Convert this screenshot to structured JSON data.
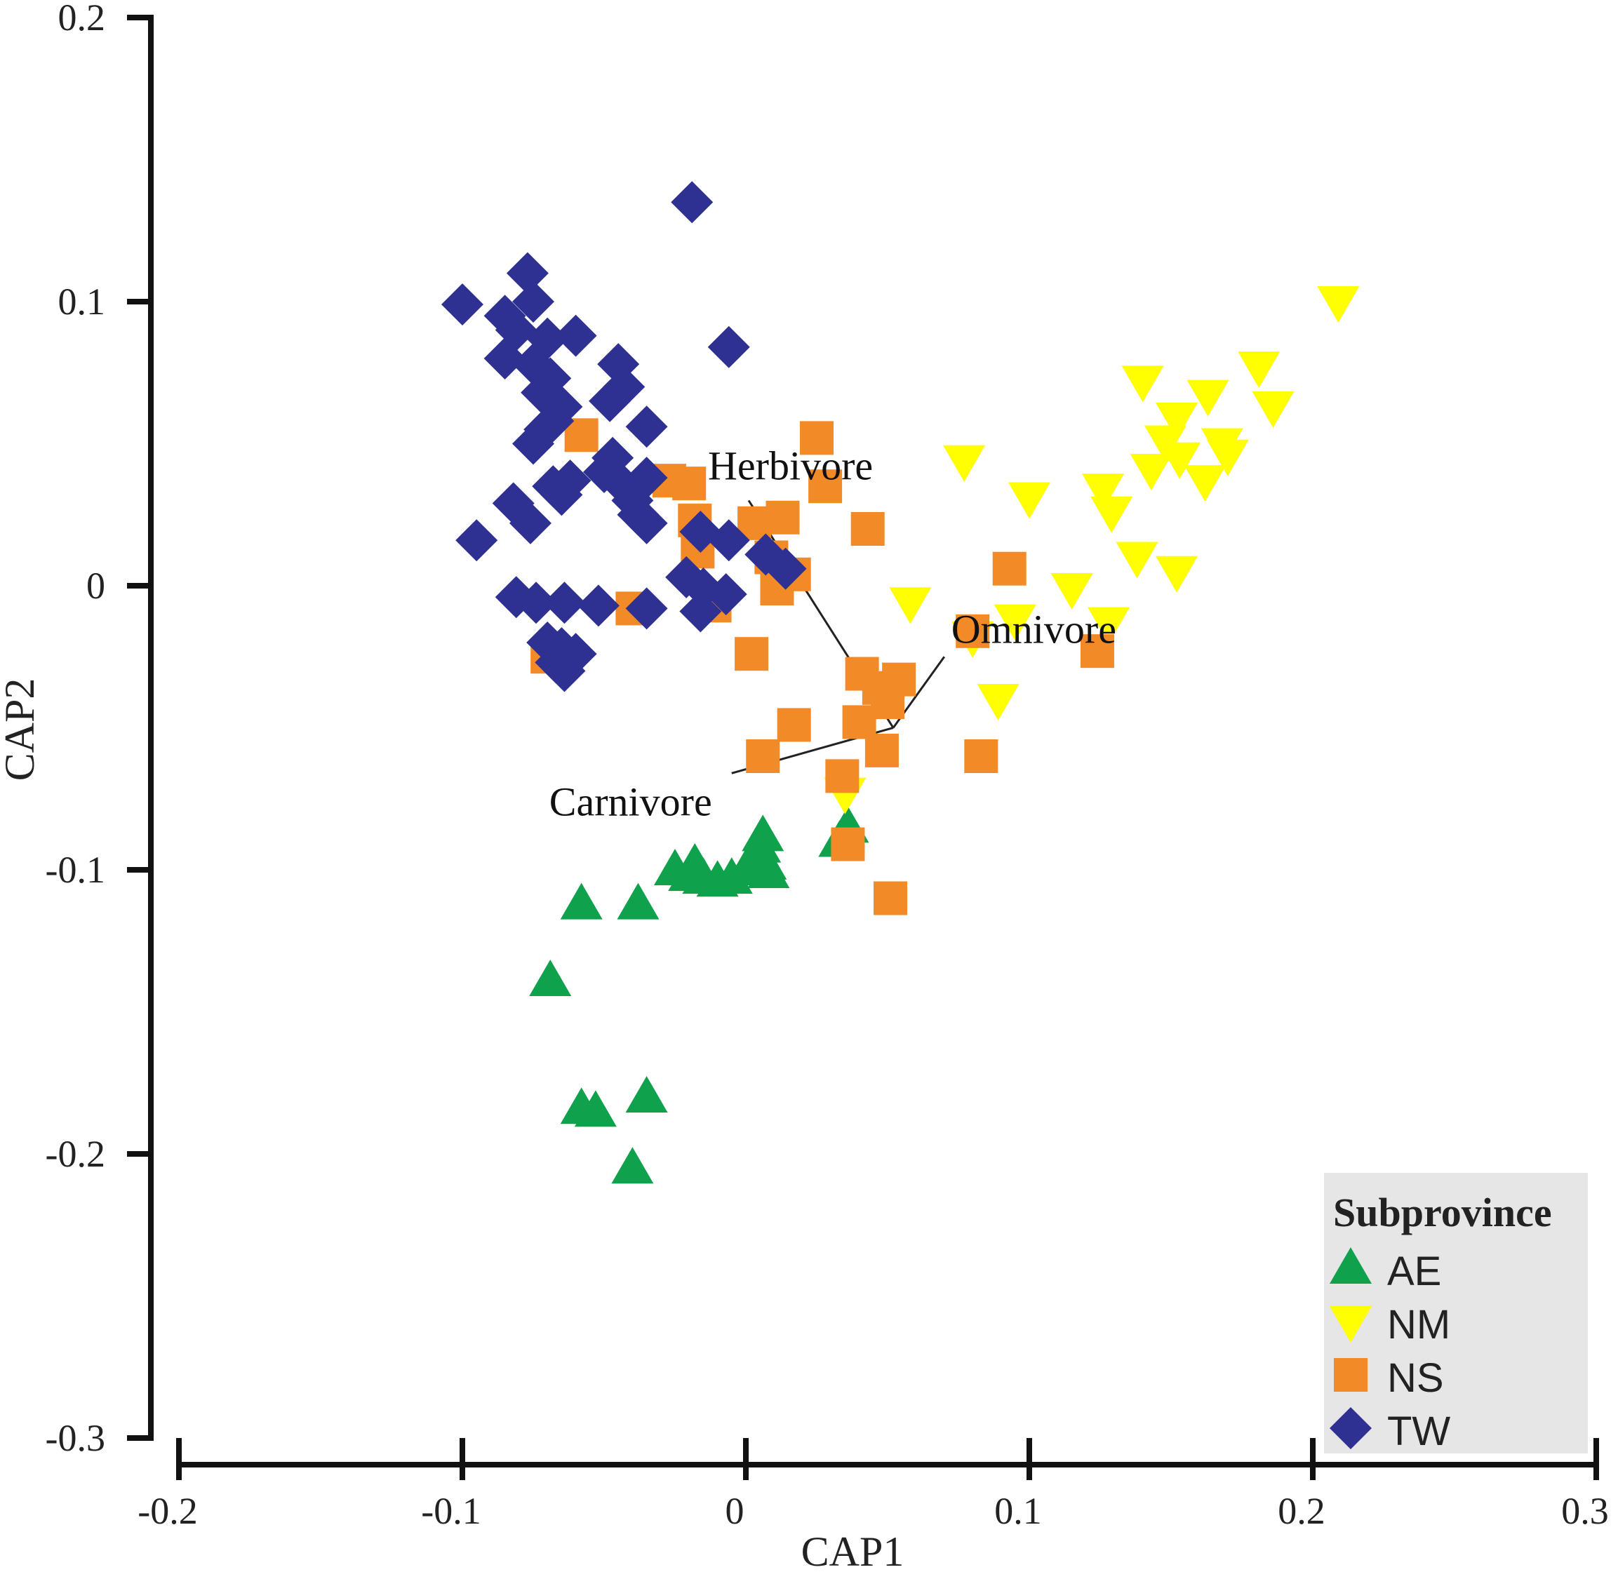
{
  "chart_data": {
    "type": "scatter",
    "title": "",
    "xlabel": "CAP1",
    "ylabel": "CAP2",
    "xlim": [
      -0.2,
      0.3
    ],
    "ylim": [
      -0.3,
      0.2
    ],
    "xticks": [
      -0.2,
      -0.1,
      0,
      0.1,
      0.2,
      0.3
    ],
    "xtick_labels": [
      "-0.2",
      "-0.1",
      "0",
      "0.1",
      "0.2",
      "0.3"
    ],
    "yticks": [
      -0.3,
      -0.2,
      -0.1,
      0,
      0.1,
      0.2
    ],
    "ytick_labels": [
      "-0.3",
      "-0.2",
      "-0.1",
      "0",
      "0.1",
      "0.2"
    ],
    "grid": false,
    "legend": {
      "title": "Subprovince",
      "position": "bottom-right"
    },
    "series": [
      {
        "name": "AE",
        "marker": "triangle-up",
        "color": "#0fa14b",
        "points": [
          [
            -0.069,
            -0.139
          ],
          [
            -0.058,
            -0.112
          ],
          [
            -0.038,
            -0.112
          ],
          [
            -0.058,
            -0.184
          ],
          [
            -0.053,
            -0.185
          ],
          [
            -0.035,
            -0.18
          ],
          [
            -0.04,
            -0.205
          ],
          [
            -0.025,
            -0.1
          ],
          [
            -0.02,
            -0.102
          ],
          [
            -0.018,
            -0.098
          ],
          [
            -0.015,
            -0.103
          ],
          [
            -0.01,
            -0.104
          ],
          [
            -0.005,
            -0.103
          ],
          [
            0,
            -0.1
          ],
          [
            0.003,
            -0.096
          ],
          [
            0.005,
            -0.092
          ],
          [
            0.007,
            -0.098
          ],
          [
            0.006,
            -0.088
          ],
          [
            0.008,
            -0.101
          ],
          [
            0.033,
            -0.09
          ],
          [
            0.036,
            -0.085
          ]
        ]
      },
      {
        "name": "NM",
        "marker": "triangle-down",
        "color": "#ffff00",
        "points": [
          [
            0.209,
            0.1
          ],
          [
            0.181,
            0.077
          ],
          [
            0.186,
            0.063
          ],
          [
            0.163,
            0.067
          ],
          [
            0.14,
            0.072
          ],
          [
            0.152,
            0.059
          ],
          [
            0.148,
            0.051
          ],
          [
            0.153,
            0.045
          ],
          [
            0.143,
            0.041
          ],
          [
            0.168,
            0.05
          ],
          [
            0.17,
            0.046
          ],
          [
            0.162,
            0.037
          ],
          [
            0.126,
            0.034
          ],
          [
            0.129,
            0.026
          ],
          [
            0.077,
            0.044
          ],
          [
            0.1,
            0.031
          ],
          [
            0.138,
            0.01
          ],
          [
            0.152,
            0.005
          ],
          [
            0.115,
            -0.001
          ],
          [
            0.058,
            -0.006
          ],
          [
            0.095,
            -0.012
          ],
          [
            0.128,
            -0.013
          ],
          [
            0.089,
            -0.04
          ],
          [
            0.035,
            -0.073
          ],
          [
            0.08,
            -0.018
          ]
        ]
      },
      {
        "name": "NS",
        "marker": "square",
        "color": "#f18a27",
        "points": [
          [
            0.025,
            0.052
          ],
          [
            -0.058,
            0.053
          ],
          [
            -0.027,
            0.037
          ],
          [
            -0.02,
            0.036
          ],
          [
            0.028,
            0.035
          ],
          [
            0.003,
            0.022
          ],
          [
            0.013,
            0.024
          ],
          [
            -0.018,
            0.023
          ],
          [
            0.043,
            0.02
          ],
          [
            0.009,
            0.01
          ],
          [
            -0.017,
            0.012
          ],
          [
            0.017,
            0.004
          ],
          [
            0.093,
            0.006
          ],
          [
            0.011,
            -0.001
          ],
          [
            -0.04,
            -0.008
          ],
          [
            -0.011,
            -0.007
          ],
          [
            0.08,
            -0.016
          ],
          [
            0.124,
            -0.023
          ],
          [
            0.002,
            -0.024
          ],
          [
            0.041,
            -0.031
          ],
          [
            0.047,
            -0.036
          ],
          [
            0.054,
            -0.033
          ],
          [
            0.05,
            -0.041
          ],
          [
            0.04,
            -0.048
          ],
          [
            0.017,
            -0.049
          ],
          [
            0.048,
            -0.058
          ],
          [
            0.083,
            -0.06
          ],
          [
            0.006,
            -0.06
          ],
          [
            0.034,
            -0.067
          ],
          [
            0.036,
            -0.091
          ],
          [
            0.051,
            -0.11
          ],
          [
            -0.07,
            -0.025
          ]
        ]
      },
      {
        "name": "TW",
        "marker": "diamond",
        "color": "#2e3191",
        "points": [
          [
            -0.019,
            0.135
          ],
          [
            -0.077,
            0.11
          ],
          [
            -0.1,
            0.099
          ],
          [
            -0.075,
            0.1
          ],
          [
            -0.085,
            0.095
          ],
          [
            -0.081,
            0.09
          ],
          [
            -0.07,
            0.087
          ],
          [
            -0.06,
            0.088
          ],
          [
            -0.006,
            0.084
          ],
          [
            -0.085,
            0.08
          ],
          [
            -0.075,
            0.078
          ],
          [
            -0.069,
            0.073
          ],
          [
            -0.045,
            0.078
          ],
          [
            -0.043,
            0.07
          ],
          [
            -0.048,
            0.065
          ],
          [
            -0.072,
            0.068
          ],
          [
            -0.065,
            0.063
          ],
          [
            -0.068,
            0.058
          ],
          [
            -0.071,
            0.055
          ],
          [
            -0.035,
            0.056
          ],
          [
            -0.075,
            0.05
          ],
          [
            -0.047,
            0.045
          ],
          [
            -0.05,
            0.04
          ],
          [
            -0.043,
            0.035
          ],
          [
            -0.035,
            0.038
          ],
          [
            -0.068,
            0.035
          ],
          [
            -0.062,
            0.037
          ],
          [
            -0.065,
            0.032
          ],
          [
            -0.04,
            0.03
          ],
          [
            -0.038,
            0.025
          ],
          [
            -0.035,
            0.022
          ],
          [
            -0.082,
            0.029
          ],
          [
            -0.076,
            0.022
          ],
          [
            -0.095,
            0.016
          ],
          [
            -0.016,
            0.019
          ],
          [
            -0.006,
            0.016
          ],
          [
            -0.021,
            0.003
          ],
          [
            -0.015,
            -0.001
          ],
          [
            -0.007,
            -0.003
          ],
          [
            -0.081,
            -0.004
          ],
          [
            -0.074,
            -0.006
          ],
          [
            -0.064,
            -0.006
          ],
          [
            -0.052,
            -0.007
          ],
          [
            -0.035,
            -0.008
          ],
          [
            -0.016,
            -0.009
          ],
          [
            0.014,
            0.006
          ],
          [
            0.007,
            0.011
          ],
          [
            -0.07,
            -0.02
          ],
          [
            -0.065,
            -0.022
          ],
          [
            -0.06,
            -0.024
          ],
          [
            -0.067,
            -0.027
          ],
          [
            -0.064,
            -0.03
          ]
        ]
      }
    ],
    "vectors": {
      "origin": [
        0.052,
        -0.05
      ],
      "items": [
        {
          "label": "Herbivore",
          "end": [
            0.001,
            0.03
          ]
        },
        {
          "label": "Omnivore",
          "end": [
            0.07,
            -0.025
          ]
        },
        {
          "label": "Carnivore",
          "end": [
            -0.005,
            -0.066
          ]
        }
      ],
      "line_color": "#222222"
    }
  }
}
